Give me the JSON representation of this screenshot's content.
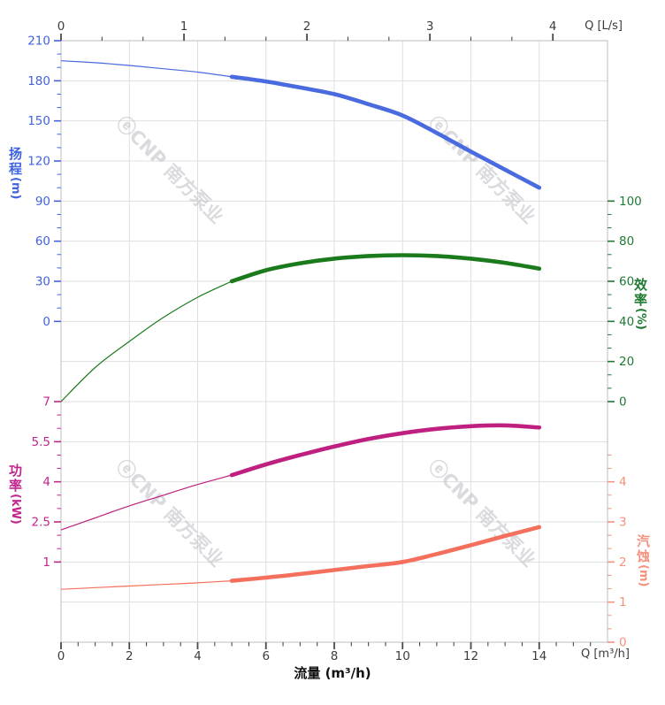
{
  "labels": {
    "q_ls": "Q [L/s]",
    "q_m3h": "Q [m³/h]",
    "flow": "流量 (m³/h)"
  },
  "watermark": {
    "text": "ⓔCNP 南方泵业"
  },
  "axes": {
    "top": {
      "title": "Q [L/s]",
      "ticks": [
        "0",
        "1",
        "2",
        "3",
        "4"
      ]
    },
    "bottom": {
      "title": "Q [m³/h]",
      "axis_title": "流量 (m³/h)",
      "ticks": [
        "0",
        "2",
        "4",
        "6",
        "8",
        "10",
        "12",
        "14"
      ]
    },
    "head": {
      "label": "扬程",
      "unit": "(m)",
      "ticks": [
        "210",
        "180",
        "150",
        "120",
        "90",
        "60",
        "30",
        "0"
      ]
    },
    "efficiency": {
      "label": "效率",
      "unit": "(%)",
      "ticks": [
        "100",
        "80",
        "60",
        "40",
        "20",
        "0"
      ]
    },
    "power": {
      "label": "功率",
      "unit": "(kW)",
      "ticks": [
        "7",
        "5.5",
        "4",
        "2.5",
        "1"
      ]
    },
    "npsh": {
      "label": "汽蚀",
      "unit": "(m)",
      "ticks": [
        "4",
        "3",
        "2",
        "1",
        "0"
      ]
    }
  },
  "colors": {
    "head_curve": "#4a6ae0",
    "head_text": "#4063e0",
    "efficiency_curve": "#1b7a1b",
    "efficiency_text": "#1f7a33",
    "power_curve": "#bf2080",
    "power_text": "#c1268d",
    "npsh_curve": "#f4705c",
    "npsh_text": "#f5917c",
    "grid": "#dfdfdf",
    "frame": "#bdbdbd",
    "tick_dark": "#4a4a4a",
    "watermark": "#b6b6c0"
  },
  "chart_data": {
    "type": "line",
    "title": "",
    "xlabel": "流量 (m³/h)",
    "x_secondary_label": "Q [L/s]",
    "x_secondary_ticks": [
      0,
      1,
      2,
      3,
      4
    ],
    "x_unit": "m³/h",
    "x_range": [
      0,
      16
    ],
    "x": [
      0,
      1,
      2,
      3,
      4,
      5,
      6,
      7,
      8,
      9,
      10,
      11,
      12,
      13,
      14
    ],
    "thick_segment_x_range": [
      5,
      14
    ],
    "grid": true,
    "legend": "none",
    "series": [
      {
        "name": "扬程",
        "unit": "m",
        "axis": "head",
        "axis_side": "left-upper",
        "axis_ticks": [
          210,
          180,
          150,
          120,
          90,
          60,
          30,
          0
        ],
        "axis_range": [
          0,
          210
        ],
        "values": [
          195,
          193.5,
          191.5,
          189,
          186.5,
          183,
          179.5,
          175,
          170,
          162.5,
          154,
          141,
          127,
          113.5,
          100
        ]
      },
      {
        "name": "效率",
        "unit": "%",
        "axis": "efficiency",
        "axis_side": "right-upper",
        "axis_ticks": [
          100,
          80,
          60,
          40,
          20,
          0
        ],
        "axis_range": [
          0,
          100
        ],
        "values": [
          0,
          17,
          30,
          42,
          52,
          60,
          65.5,
          69,
          71.3,
          72.6,
          73,
          72.6,
          71.3,
          69.2,
          66.3
        ]
      },
      {
        "name": "功率",
        "unit": "kW",
        "axis": "power",
        "axis_side": "left-lower",
        "axis_ticks": [
          7,
          5.5,
          4,
          2.5,
          1
        ],
        "axis_range": [
          0.5,
          7.5
        ],
        "values": [
          2.2,
          2.65,
          3.1,
          3.5,
          3.9,
          4.25,
          4.65,
          5.0,
          5.32,
          5.6,
          5.82,
          5.98,
          6.08,
          6.11,
          6.03
        ]
      },
      {
        "name": "汽蚀",
        "unit": "m",
        "axis": "npsh",
        "axis_side": "right-lower",
        "axis_ticks": [
          4,
          3,
          2,
          1,
          0
        ],
        "axis_range": [
          0,
          6
        ],
        "values": [
          1.32,
          1.36,
          1.4,
          1.44,
          1.48,
          1.53,
          1.61,
          1.7,
          1.8,
          1.9,
          2.0,
          2.2,
          2.42,
          2.65,
          2.87
        ]
      }
    ]
  }
}
